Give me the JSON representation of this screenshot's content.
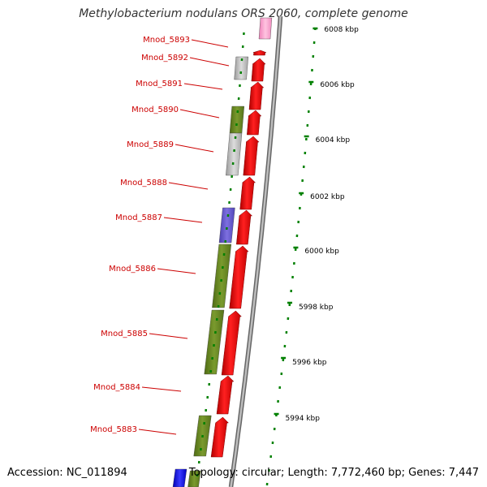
{
  "title": "Methylobacterium nodulans ORS 2060, complete genome",
  "footer": {
    "accession": "Accession: NC_011894",
    "summary": "Topology: circular; Length: 7,772,460 bp; Genes: 7,447"
  },
  "colors": {
    "gene_label": "#cc0000",
    "forward_gene": "#ff0000",
    "olive_feature": "#6b8e23",
    "gray_feature": "#c0c0c0",
    "purple_feature": "#6a5acd",
    "pink_feature": "#ff99cc",
    "blue_feature": "#0000ff",
    "backbone": "#888888",
    "tick": "#008000",
    "ruler_label": "#000000"
  },
  "gene_labels": [
    "Mnod_5893",
    "Mnod_5892",
    "Mnod_5891",
    "Mnod_5890",
    "Mnod_5889",
    "Mnod_5888",
    "Mnod_5887",
    "Mnod_5886",
    "Mnod_5885",
    "Mnod_5884",
    "Mnod_5883"
  ],
  "ruler_labels": [
    "6008 kbp",
    "6006 kbp",
    "6004 kbp",
    "6002 kbp",
    "6000 kbp",
    "5998 kbp",
    "5996 kbp",
    "5994 kbp"
  ]
}
